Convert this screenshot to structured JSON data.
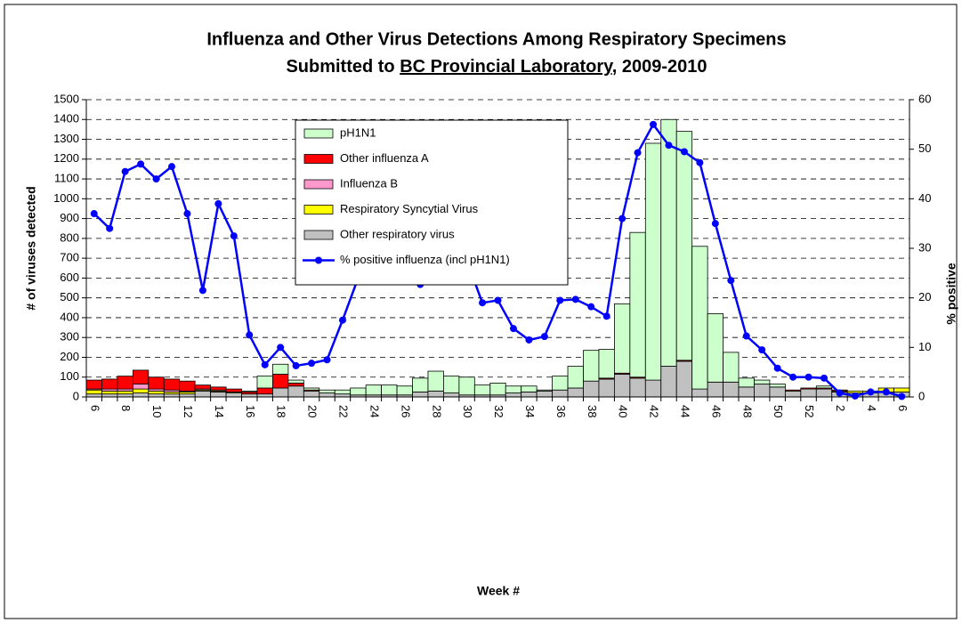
{
  "chart_data": {
    "type": "bar",
    "stacked": true,
    "title": "Influenza and Other Virus Detections Among Respiratory Specimens",
    "title_line2": {
      "before": "Submitted to ",
      "underlined": "BC Provincial Laboratory",
      "after": ", 2009-2010"
    },
    "x_label": "Week #",
    "y_label": "# of viruses detected",
    "y2_label": "% positive",
    "categories": [
      "6",
      null,
      "8",
      null,
      "10",
      null,
      "12",
      null,
      "14",
      null,
      "16",
      null,
      "18",
      null,
      "20",
      null,
      "22",
      null,
      "24",
      null,
      "26",
      null,
      "28",
      null,
      "30",
      null,
      "32",
      null,
      "34",
      null,
      "36",
      null,
      "38",
      null,
      "40",
      null,
      "42",
      null,
      "44",
      null,
      "46",
      null,
      "48",
      null,
      "50",
      null,
      "52",
      null,
      "2",
      null,
      "4",
      null,
      "6"
    ],
    "series": [
      {
        "name": "pH1N1",
        "color": "#ccffcc",
        "values": [
          0,
          0,
          0,
          0,
          0,
          0,
          0,
          0,
          0,
          0,
          5,
          60,
          50,
          15,
          10,
          15,
          20,
          35,
          50,
          50,
          45,
          70,
          100,
          85,
          90,
          50,
          60,
          35,
          30,
          5,
          70,
          110,
          155,
          145,
          350,
          730,
          1195,
          1245,
          1155,
          720,
          345,
          150,
          45,
          20,
          15,
          0,
          0,
          10,
          0,
          0,
          0,
          0,
          0
        ]
      },
      {
        "name": "Other influenza A",
        "color": "#ff0000",
        "values": [
          45,
          50,
          65,
          70,
          60,
          55,
          50,
          20,
          15,
          15,
          10,
          30,
          70,
          15,
          5,
          0,
          0,
          0,
          0,
          0,
          0,
          0,
          0,
          0,
          0,
          0,
          0,
          0,
          0,
          0,
          0,
          0,
          0,
          5,
          5,
          5,
          0,
          0,
          5,
          0,
          0,
          0,
          0,
          0,
          0,
          5,
          5,
          5,
          5,
          0,
          0,
          0,
          0
        ]
      },
      {
        "name": "Influenza B",
        "color": "#ff99cc",
        "values": [
          5,
          10,
          10,
          25,
          10,
          10,
          5,
          5,
          5,
          0,
          0,
          0,
          0,
          0,
          0,
          0,
          0,
          0,
          0,
          0,
          0,
          0,
          0,
          0,
          0,
          0,
          0,
          0,
          0,
          0,
          0,
          0,
          0,
          0,
          0,
          0,
          0,
          0,
          0,
          0,
          0,
          0,
          0,
          0,
          0,
          0,
          0,
          0,
          0,
          0,
          0,
          0,
          0
        ]
      },
      {
        "name": "Respiratory Syncytial Virus",
        "color": "#ffff00",
        "values": [
          20,
          15,
          15,
          20,
          15,
          10,
          10,
          5,
          5,
          5,
          0,
          0,
          0,
          0,
          0,
          0,
          0,
          0,
          0,
          0,
          0,
          0,
          0,
          0,
          0,
          0,
          0,
          0,
          0,
          0,
          0,
          0,
          0,
          0,
          0,
          0,
          0,
          0,
          0,
          0,
          0,
          0,
          0,
          0,
          0,
          0,
          0,
          0,
          5,
          10,
          10,
          20,
          20
        ]
      },
      {
        "name": "Other respiratory virus",
        "color": "#c0c0c0",
        "values": [
          15,
          15,
          15,
          20,
          15,
          15,
          15,
          30,
          25,
          20,
          15,
          15,
          45,
          55,
          30,
          20,
          15,
          10,
          10,
          10,
          10,
          25,
          30,
          20,
          10,
          10,
          10,
          20,
          25,
          30,
          35,
          45,
          80,
          90,
          115,
          95,
          85,
          155,
          180,
          40,
          75,
          75,
          50,
          65,
          50,
          30,
          40,
          40,
          25,
          20,
          20,
          25,
          25
        ]
      },
      {
        "name": "% positive influenza (incl pH1N1)",
        "type": "line",
        "axis": "y2",
        "color": "#0000ff",
        "values": [
          37,
          34,
          45.5,
          47,
          44,
          46.5,
          37,
          21.5,
          39,
          32.5,
          12.5,
          6.5,
          10,
          6.3,
          6.8,
          7.5,
          15.5,
          24,
          26.5,
          27.5,
          23.3,
          22.7,
          27,
          23.3,
          27.5,
          19,
          19.5,
          13.8,
          11.5,
          12.2,
          19.5,
          19.7,
          18.2,
          16.3,
          36,
          49.3,
          55,
          50.8,
          49.5,
          47.3,
          35,
          23.5,
          12.3,
          9.5,
          5.8,
          4,
          4,
          3.8,
          0.8,
          0.2,
          1,
          1,
          0.1
        ]
      }
    ],
    "ylim": [
      0,
      1500
    ],
    "yticks": [
      0,
      100,
      200,
      300,
      400,
      500,
      600,
      700,
      800,
      900,
      1000,
      1100,
      1200,
      1300,
      1400,
      1500
    ],
    "y2lim": [
      0,
      60
    ],
    "y2ticks": [
      0,
      10,
      20,
      30,
      40,
      50,
      60
    ],
    "grid": true,
    "legend": "top-center"
  }
}
